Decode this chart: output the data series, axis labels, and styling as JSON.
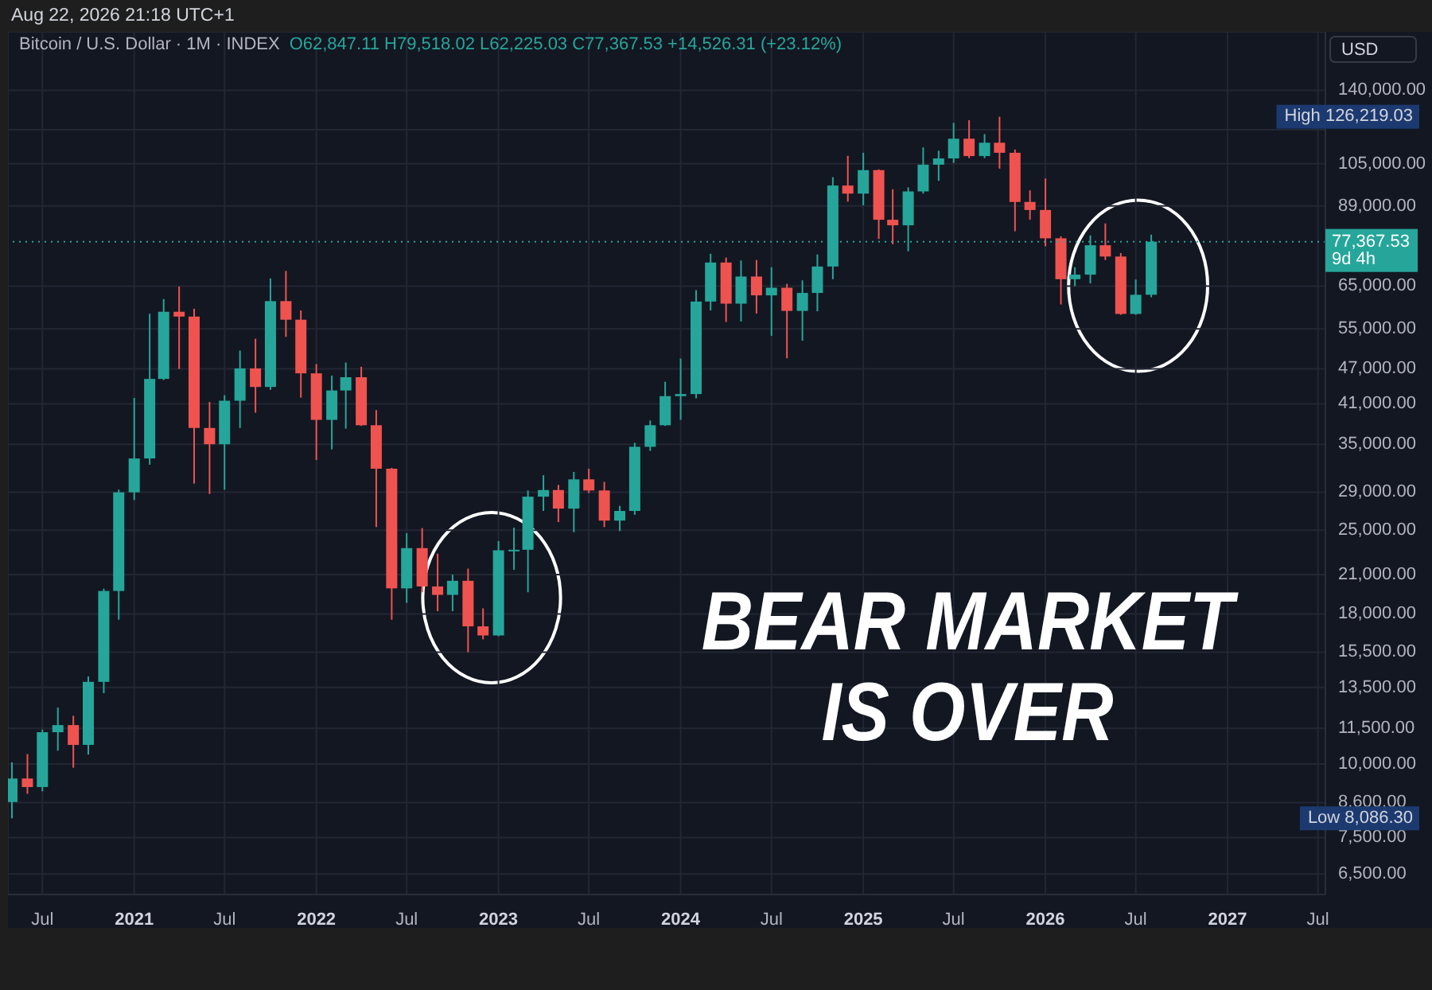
{
  "chart_data": {
    "type": "candlestick",
    "title": "Bitcoin / U.S. Dollar · 1M · INDEX",
    "subtitle": "O62,847.11 H79,518.02 L62,225.03 C77,367.53 +14,526.31 (+23.12%)",
    "ylabel": "USD",
    "x": [
      "2020-05",
      "2020-06",
      "2020-07",
      "2020-08",
      "2020-09",
      "2020-10",
      "2020-11",
      "2020-12",
      "2021-01",
      "2021-02",
      "2021-03",
      "2021-04",
      "2021-05",
      "2021-06",
      "2021-07",
      "2021-08",
      "2021-09",
      "2021-10",
      "2021-11",
      "2021-12",
      "2022-01",
      "2022-02",
      "2022-03",
      "2022-04",
      "2022-05",
      "2022-06",
      "2022-07",
      "2022-08",
      "2022-09",
      "2022-10",
      "2022-11",
      "2022-12",
      "2023-01",
      "2023-02",
      "2023-03",
      "2023-04",
      "2023-05",
      "2023-06",
      "2023-07",
      "2023-08",
      "2023-09",
      "2023-10",
      "2023-11",
      "2023-12",
      "2024-01",
      "2024-02",
      "2024-03",
      "2024-04",
      "2024-05",
      "2024-06",
      "2024-07",
      "2024-08",
      "2024-09",
      "2024-10",
      "2024-11",
      "2024-12",
      "2025-01",
      "2025-02",
      "2025-03",
      "2025-04",
      "2025-05",
      "2025-06",
      "2025-07",
      "2025-08",
      "2025-09",
      "2025-10",
      "2025-11",
      "2025-12",
      "2026-01",
      "2026-02",
      "2026-03",
      "2026-04",
      "2026-05",
      "2026-06",
      "2026-07",
      "2026-08"
    ],
    "ohlc": [
      [
        8620,
        10070,
        8086.3,
        9450
      ],
      [
        9450,
        10400,
        8900,
        9140
      ],
      [
        9140,
        11450,
        8990,
        11330
      ],
      [
        11330,
        12480,
        10540,
        11650
      ],
      [
        11650,
        12080,
        9860,
        10780
      ],
      [
        10780,
        14100,
        10380,
        13800
      ],
      [
        13800,
        19880,
        13200,
        19700
      ],
      [
        19700,
        29300,
        17600,
        28990
      ],
      [
        28990,
        41950,
        28130,
        33100
      ],
      [
        33100,
        58350,
        32300,
        45200
      ],
      [
        45200,
        61800,
        45000,
        58800
      ],
      [
        58800,
        64900,
        47000,
        57700
      ],
      [
        57700,
        59500,
        30000,
        37300
      ],
      [
        37300,
        41300,
        28800,
        35000
      ],
      [
        35000,
        42400,
        29300,
        41500
      ],
      [
        41500,
        50500,
        37300,
        47100
      ],
      [
        47100,
        52900,
        39600,
        43800
      ],
      [
        43800,
        67000,
        43300,
        61300
      ],
      [
        61300,
        69000,
        53300,
        57000
      ],
      [
        57000,
        59100,
        42000,
        46200
      ],
      [
        46200,
        47900,
        32900,
        38500
      ],
      [
        38500,
        45800,
        34300,
        43200
      ],
      [
        43200,
        48200,
        37200,
        45500
      ],
      [
        45500,
        47400,
        37600,
        37700
      ],
      [
        37700,
        40000,
        25300,
        31800
      ],
      [
        31800,
        31900,
        17600,
        19900
      ],
      [
        19900,
        24700,
        18800,
        23300
      ],
      [
        23300,
        25200,
        19600,
        20050
      ],
      [
        20050,
        22800,
        18200,
        19400
      ],
      [
        19400,
        21000,
        18200,
        20500
      ],
      [
        20500,
        21500,
        15500,
        17150
      ],
      [
        17150,
        18400,
        16300,
        16550
      ],
      [
        16550,
        23950,
        16500,
        23100
      ],
      [
        23100,
        25250,
        21400,
        23150
      ],
      [
        23150,
        29200,
        19600,
        28500
      ],
      [
        28500,
        31000,
        26950,
        29250
      ],
      [
        29250,
        29850,
        25800,
        27200
      ],
      [
        27200,
        31400,
        24800,
        30500
      ],
      [
        30500,
        31800,
        28900,
        29200
      ],
      [
        29200,
        30200,
        25300,
        25950
      ],
      [
        25950,
        27500,
        24900,
        26950
      ],
      [
        26950,
        35200,
        26550,
        34650
      ],
      [
        34650,
        38400,
        34100,
        37700
      ],
      [
        37700,
        44700,
        37600,
        42250
      ],
      [
        42250,
        48950,
        38500,
        42600
      ],
      [
        42600,
        64000,
        41900,
        61200
      ],
      [
        61200,
        73800,
        59100,
        71300
      ],
      [
        71300,
        72700,
        56500,
        60700
      ],
      [
        60700,
        71900,
        56600,
        67500
      ],
      [
        67500,
        72000,
        58400,
        62700
      ],
      [
        62700,
        70000,
        53500,
        64600
      ],
      [
        64600,
        65600,
        49000,
        59000
      ],
      [
        59000,
        66500,
        52500,
        63300
      ],
      [
        63300,
        73600,
        58900,
        70200
      ],
      [
        70200,
        99600,
        66800,
        96400
      ],
      [
        96400,
        108300,
        90500,
        93400
      ],
      [
        93400,
        109600,
        89200,
        102400
      ],
      [
        102400,
        102700,
        78200,
        84300
      ],
      [
        84300,
        95000,
        76600,
        82500
      ],
      [
        82500,
        95700,
        74500,
        94200
      ],
      [
        94200,
        111900,
        93400,
        104600
      ],
      [
        104600,
        110500,
        98200,
        107200
      ],
      [
        107200,
        123200,
        105300,
        115800
      ],
      [
        115800,
        124500,
        107300,
        108200
      ],
      [
        108200,
        117900,
        107300,
        114000
      ],
      [
        114000,
        126219.03,
        103000,
        109600
      ],
      [
        109600,
        111000,
        80600,
        90400
      ],
      [
        90400,
        94600,
        84300,
        87600
      ],
      [
        87600,
        99100,
        76000,
        78400
      ],
      [
        78400,
        79000,
        60500,
        66800
      ],
      [
        66800,
        70000,
        65000,
        68000
      ],
      [
        68000,
        79300,
        65700,
        76300
      ],
      [
        76300,
        83100,
        72000,
        73000
      ],
      [
        73000,
        74000,
        58100,
        58300
      ],
      [
        58300,
        66700,
        58100,
        62840
      ],
      [
        62847.11,
        79518.02,
        62225.03,
        77367.53
      ]
    ],
    "colors": [
      "#26a69a",
      "#ef5350",
      "#26a69a",
      "#26a69a",
      "#ef5350",
      "#26a69a",
      "#26a69a",
      "#26a69a",
      "#26a69a",
      "#26a69a",
      "#26a69a",
      "#ef5350",
      "#ef5350",
      "#ef5350",
      "#26a69a",
      "#26a69a",
      "#ef5350",
      "#26a69a",
      "#ef5350",
      "#ef5350",
      "#ef5350",
      "#26a69a",
      "#26a69a",
      "#ef5350",
      "#ef5350",
      "#ef5350",
      "#26a69a",
      "#ef5350",
      "#ef5350",
      "#26a69a",
      "#ef5350",
      "#ef5350",
      "#26a69a",
      "#26a69a",
      "#26a69a",
      "#26a69a",
      "#ef5350",
      "#26a69a",
      "#ef5350",
      "#ef5350",
      "#26a69a",
      "#26a69a",
      "#26a69a",
      "#26a69a",
      "#26a69a",
      "#26a69a",
      "#26a69a",
      "#ef5350",
      "#26a69a",
      "#ef5350",
      "#26a69a",
      "#ef5350",
      "#26a69a",
      "#26a69a",
      "#26a69a",
      "#ef5350",
      "#26a69a",
      "#ef5350",
      "#ef5350",
      "#26a69a",
      "#26a69a",
      "#26a69a",
      "#26a69a",
      "#ef5350",
      "#26a69a",
      "#ef5350",
      "#ef5350",
      "#ef5350",
      "#ef5350",
      "#ef5350",
      "#26a69a",
      "#26a69a",
      "#ef5350",
      "#ef5350",
      "#26a69a",
      "#26a69a"
    ],
    "xlim": [
      "2020-04-23",
      "2027-07-16"
    ],
    "xticks": [
      {
        "value": "2020-07",
        "label": "Jul"
      },
      "2021",
      {
        "value": "2021-07",
        "label": "Jul"
      },
      "2022",
      {
        "value": "2022-07",
        "label": "Jul"
      },
      "2023",
      {
        "value": "2023-07",
        "label": "Jul"
      },
      "2024",
      {
        "value": "2024-07",
        "label": "Jul"
      },
      "2025",
      {
        "value": "2025-07",
        "label": "Jul"
      },
      "2026",
      {
        "value": "2026-07",
        "label": "Jul"
      },
      "2027",
      {
        "value": "2027-07",
        "label": "Jul"
      }
    ],
    "ylim": [
      6000,
      176000
    ],
    "yticks": [
      {
        "value": 140000,
        "label": "140,000.00"
      },
      {
        "value": 120000,
        "label": null
      },
      {
        "value": 105000,
        "label": "105,000.00"
      },
      {
        "value": 89000,
        "label": "89,000.00"
      },
      {
        "value": 65000,
        "label": "65,000.00"
      },
      {
        "value": 55000,
        "label": "55,000.00"
      },
      {
        "value": 47000,
        "label": "47,000.00"
      },
      {
        "value": 41000,
        "label": "41,000.00"
      },
      {
        "value": 35000,
        "label": "35,000.00"
      },
      {
        "value": 29000,
        "label": "29,000.00"
      },
      {
        "value": 25000,
        "label": "25,000.00"
      },
      {
        "value": 21000,
        "label": "21,000.00"
      },
      {
        "value": 18000,
        "label": "18,000.00"
      },
      {
        "value": 15500,
        "label": "15,500.00"
      },
      {
        "value": 13500,
        "label": "13,500.00"
      },
      {
        "value": 11500,
        "label": "11,500.00"
      },
      {
        "value": 10000,
        "label": "10,000.00"
      },
      {
        "value": 8600,
        "label": "8,600.00"
      },
      {
        "value": 7500,
        "label": "7,500.00"
      },
      {
        "value": 6500,
        "label": "6,500.00"
      }
    ],
    "log": true,
    "grid": true,
    "ref_lines": [
      {
        "axis": "y",
        "value": 77367.53,
        "label": "77,367.53",
        "color": "#26a69a",
        "line_style": "dotted"
      }
    ],
    "annotations": [
      "Aug 22, 2026 21:18 UTC+1",
      "BEAR MARKET IS OVER",
      "High 126,219.03",
      "Low 8,086.30",
      "9d 4h"
    ]
  }
}
